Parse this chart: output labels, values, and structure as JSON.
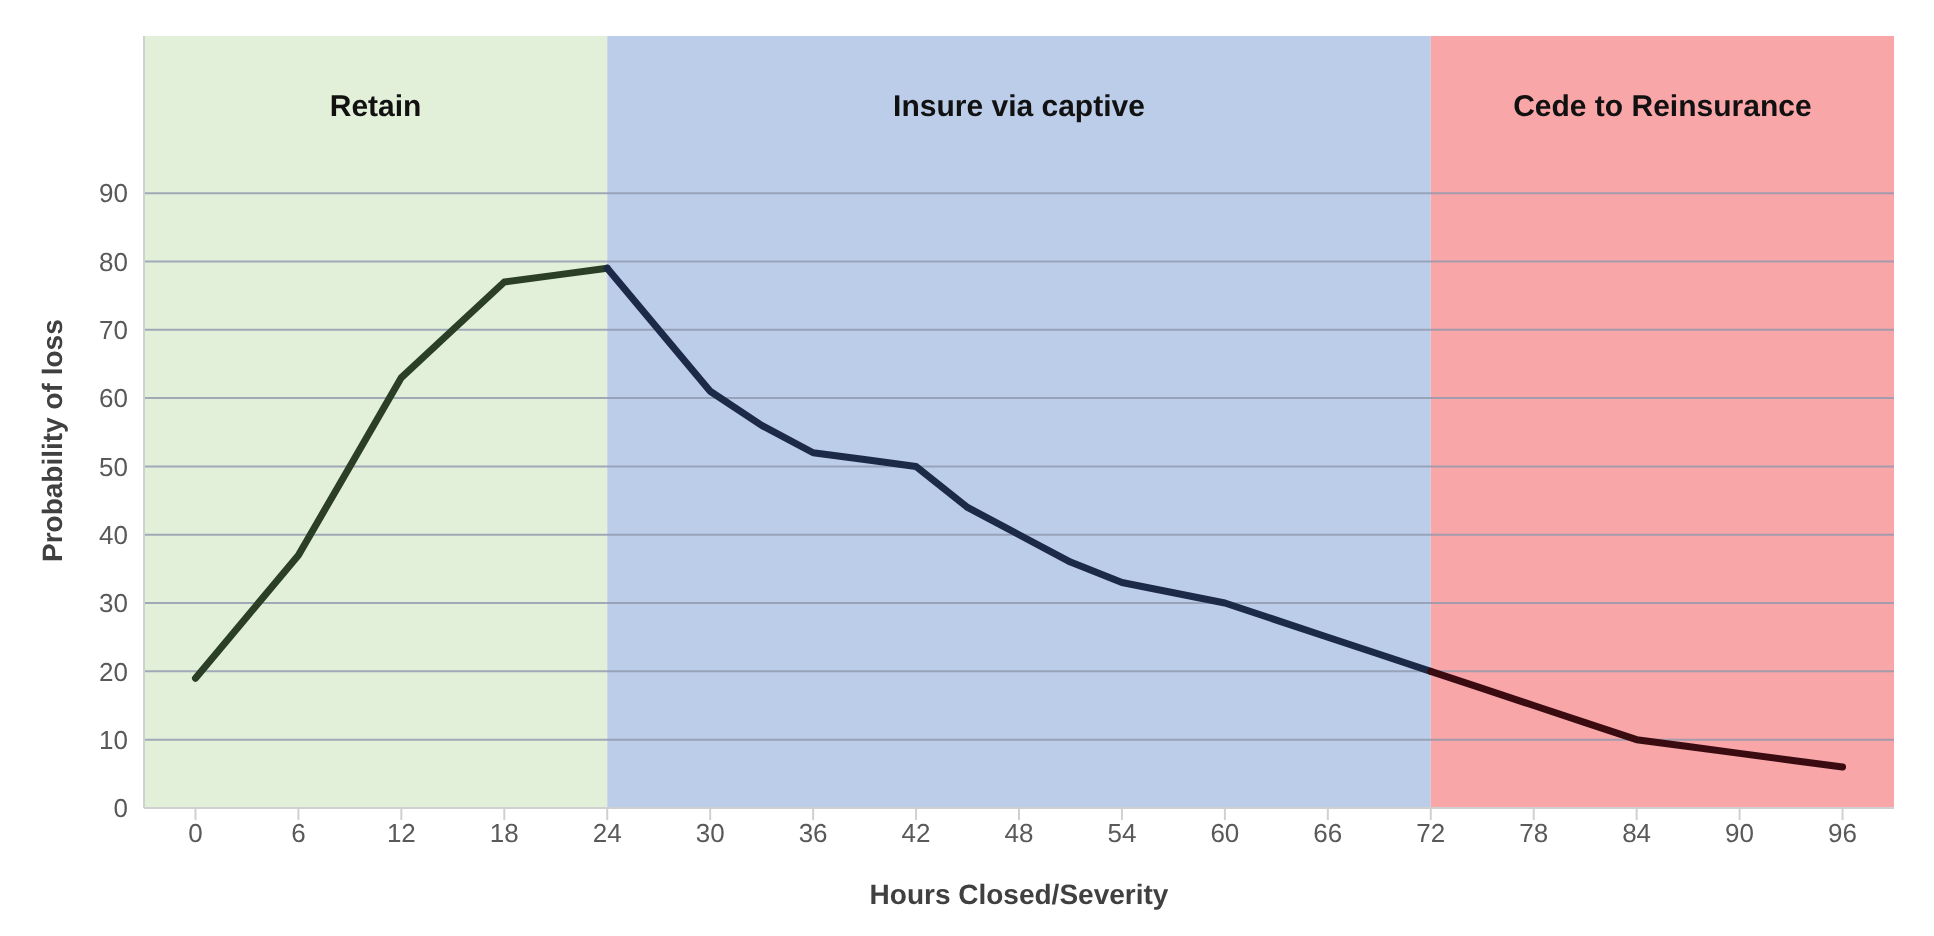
{
  "chart_data": {
    "type": "line",
    "xlabel": "Hours Closed/Severity",
    "ylabel": "Probability of loss",
    "xlim": [
      -3,
      99
    ],
    "xticks": [
      0,
      6,
      12,
      18,
      24,
      30,
      36,
      42,
      48,
      54,
      60,
      66,
      72,
      78,
      84,
      90,
      96
    ],
    "ylim": [
      0,
      113
    ],
    "yticks": [
      0,
      10,
      20,
      30,
      40,
      50,
      60,
      70,
      80,
      90
    ],
    "grid": "y",
    "legend": false,
    "marker": "none",
    "line_style": "solid",
    "bands": [
      {
        "axis": "x",
        "from": -3,
        "to": 24,
        "label": "Retain",
        "color": "#e2efd9"
      },
      {
        "axis": "x",
        "from": 24,
        "to": 72,
        "label": "Insure via captive",
        "color": "#bccde9"
      },
      {
        "axis": "x",
        "from": 72,
        "to": 99,
        "label": "Cede to Reinsurance",
        "color": "#f9a6a9"
      }
    ],
    "series": [
      {
        "color": "#2b3f27",
        "x": [
          0,
          3,
          6,
          9,
          12,
          15,
          18,
          21,
          24
        ],
        "values": [
          19,
          28,
          37,
          50,
          63,
          70,
          77,
          78,
          79
        ]
      },
      {
        "color": "#1c2a48",
        "x": [
          24,
          27,
          30,
          33,
          36,
          39,
          42,
          45,
          48,
          51,
          54,
          57,
          60,
          63,
          66,
          69,
          72
        ],
        "values": [
          79,
          70,
          61,
          56,
          52,
          51,
          50,
          44,
          40,
          36,
          33,
          31.5,
          30,
          27.5,
          25,
          22.5,
          20
        ]
      },
      {
        "color": "#3a0c12",
        "x": [
          72,
          75,
          78,
          81,
          84,
          87,
          90,
          93,
          96
        ],
        "values": [
          20,
          17.5,
          15,
          12.5,
          10,
          9,
          8,
          7,
          6
        ]
      }
    ]
  }
}
